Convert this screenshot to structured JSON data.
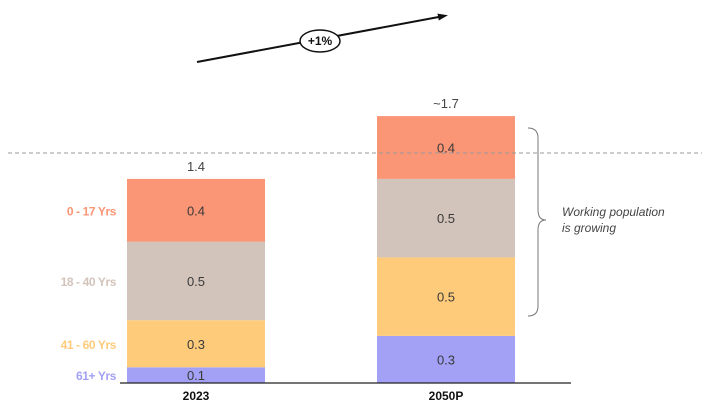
{
  "chart_data": {
    "type": "bar",
    "stacked": true,
    "categories": [
      "2023",
      "2050P"
    ],
    "totals": [
      "1.4",
      "~1.7"
    ],
    "series": [
      {
        "name": "61+ Yrs",
        "values": [
          0.1,
          0.3
        ],
        "color": "#a3a1f5"
      },
      {
        "name": "41 - 60 Yrs",
        "values": [
          0.3,
          0.5
        ],
        "color": "#fdcb79"
      },
      {
        "name": "18 - 40 Yrs",
        "values": [
          0.5,
          0.5
        ],
        "color": "#d3c4bb"
      },
      {
        "name": "0 - 17 Yrs",
        "values": [
          0.4,
          0.4
        ],
        "color": "#fa9576"
      }
    ],
    "growth_label": "+1%",
    "annotation": "Working population is growing",
    "annotation_lines": [
      "Working population",
      "is growing"
    ],
    "ylim": [
      0,
      1.8
    ],
    "legend": "left",
    "grid": false
  }
}
